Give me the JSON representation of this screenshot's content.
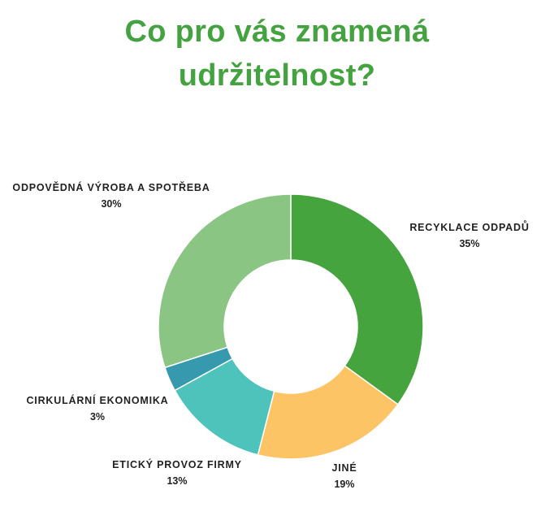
{
  "title_line1": "Co pro vás znamená",
  "title_line2": "udržitelnost?",
  "colors": {
    "title": "#44a340"
  },
  "chart_data": {
    "type": "pie",
    "donut": true,
    "title": "Co pro vás znamená udržitelnost?",
    "unit": "%",
    "slices": [
      {
        "label": "RECYKLACE ODPADŮ",
        "value": 35,
        "value_label": "35%",
        "color": "#46a43e"
      },
      {
        "label": "JINÉ",
        "value": 19,
        "value_label": "19%",
        "color": "#fdc466"
      },
      {
        "label": "ETICKÝ PROVOZ FIRMY",
        "value": 13,
        "value_label": "13%",
        "color": "#4ec3bb"
      },
      {
        "label": "CIRKULÁRNÍ EKONOMIKA",
        "value": 3,
        "value_label": "3%",
        "color": "#3699ae"
      },
      {
        "label": "ODPOVĚDNÁ VÝROBA A SPOTŘEBA",
        "value": 30,
        "value_label": "30%",
        "color": "#8ac584"
      }
    ]
  }
}
